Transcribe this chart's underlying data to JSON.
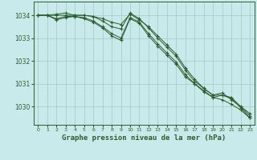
{
  "background_color": "#c8eaea",
  "grid_color": "#a0c8c8",
  "line_color": "#2d5e2d",
  "xlabel": "Graphe pression niveau de la mer (hPa)",
  "xlabel_fontsize": 6.5,
  "ylabel_ticks": [
    1030,
    1031,
    1032,
    1033,
    1034
  ],
  "xlim": [
    -0.5,
    23.5
  ],
  "ylim": [
    1029.2,
    1034.6
  ],
  "xticks": [
    0,
    1,
    2,
    3,
    4,
    5,
    6,
    7,
    8,
    9,
    10,
    11,
    12,
    13,
    14,
    15,
    16,
    17,
    18,
    19,
    20,
    21,
    22,
    23
  ],
  "series": [
    [
      1034.0,
      1034.0,
      1034.0,
      1034.0,
      1034.0,
      1034.0,
      1033.95,
      1033.85,
      1033.7,
      1033.6,
      1034.05,
      1033.8,
      1033.5,
      1033.1,
      1032.7,
      1032.3,
      1031.7,
      1031.2,
      1030.8,
      1030.5,
      1030.5,
      1030.4,
      1030.0,
      1029.7
    ],
    [
      1034.0,
      1034.0,
      1034.05,
      1034.1,
      1034.0,
      1034.0,
      1033.95,
      1033.75,
      1033.5,
      1033.4,
      1034.1,
      1033.85,
      1033.45,
      1033.0,
      1032.6,
      1032.2,
      1031.6,
      1031.1,
      1030.8,
      1030.5,
      1030.6,
      1030.3,
      1030.0,
      1029.6
    ],
    [
      1034.0,
      1034.0,
      1033.85,
      1033.95,
      1033.95,
      1033.9,
      1033.75,
      1033.5,
      1033.2,
      1033.0,
      1033.9,
      1033.7,
      1033.2,
      1032.75,
      1032.35,
      1031.95,
      1031.4,
      1031.0,
      1030.7,
      1030.4,
      1030.5,
      1030.35,
      1029.95,
      1029.5
    ],
    [
      1034.0,
      1034.0,
      1033.8,
      1033.9,
      1033.95,
      1033.85,
      1033.7,
      1033.45,
      1033.1,
      1032.9,
      1033.85,
      1033.65,
      1033.1,
      1032.65,
      1032.25,
      1031.85,
      1031.3,
      1031.0,
      1030.65,
      1030.4,
      1030.3,
      1030.1,
      1029.85,
      1029.5
    ]
  ]
}
